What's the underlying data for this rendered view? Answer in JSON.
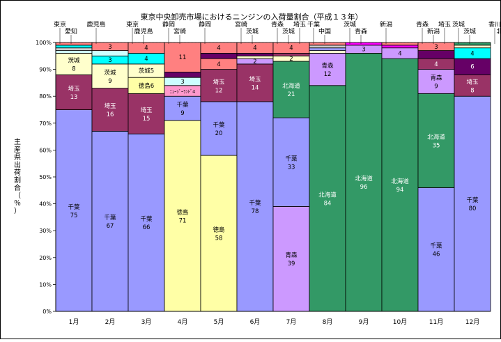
{
  "chart_data": {
    "type": "bar",
    "stacked": true,
    "title": "東京中央卸売市場におけるニンジンの入荷量割合（平成１３年）",
    "ylabel": "主産県出荷割合（％）",
    "xlabel": "",
    "ylim": [
      0,
      100
    ],
    "yticks": [
      "0%",
      "10%",
      "20%",
      "30%",
      "40%",
      "50%",
      "60%",
      "70%",
      "80%",
      "90%",
      "100%"
    ],
    "grid": true,
    "categories": [
      "1月",
      "2月",
      "3月",
      "4月",
      "5月",
      "6月",
      "7月",
      "8月",
      "9月",
      "10月",
      "11月",
      "12月"
    ],
    "colors": {
      "千葉": "#9999ff",
      "徳島": "#ffffa6",
      "青森": "#cc99ff",
      "北海道": "#339966",
      "埼玉": "#993366",
      "茨城": "#ffffcc",
      "ニュージーランド": "#ff99cc",
      "鹿児島": "#ccffff",
      "宮崎": "#660066",
      "静岡": "#ff8080",
      "東京": "#00ffff",
      "新潟": "#ff00ff",
      "香川": "#00ffff",
      "その他": "#ff8080"
    },
    "months": [
      {
        "segments": [
          {
            "name": "千葉",
            "value": 75,
            "label": "千葉\n75"
          },
          {
            "name": "埼玉",
            "value": 13,
            "label": "埼玉\n13"
          },
          {
            "name": "茨城",
            "value": 8,
            "label": "茨城\n8"
          },
          {
            "name": "鹿児島",
            "value": 1,
            "label": ""
          },
          {
            "name": "愛知",
            "value": 1,
            "label": ""
          },
          {
            "name": "東京",
            "value": 1,
            "label": ""
          },
          {
            "name": "その他",
            "value": 1,
            "label": ""
          }
        ]
      },
      {
        "segments": [
          {
            "name": "千葉",
            "value": 67,
            "label": "千葉\n67"
          },
          {
            "name": "埼玉",
            "value": 16,
            "label": "埼玉\n16"
          },
          {
            "name": "茨城",
            "value": 9,
            "label": "茨城\n9"
          },
          {
            "name": "東京",
            "value": 3,
            "label": "3"
          },
          {
            "name": "鹿児島",
            "value": 2,
            "label": ""
          },
          {
            "name": "その他",
            "value": 3,
            "label": "3"
          }
        ]
      },
      {
        "segments": [
          {
            "name": "千葉",
            "value": 66,
            "label": "千葉\n66"
          },
          {
            "name": "埼玉",
            "value": 15,
            "label": "埼玉\n15"
          },
          {
            "name": "徳島",
            "value": 6,
            "label": "徳島6"
          },
          {
            "name": "茨城",
            "value": 5,
            "label": "茨城5"
          },
          {
            "name": "東京",
            "value": 4,
            "label": "4"
          },
          {
            "name": "その他",
            "value": 4,
            "label": "4"
          }
        ]
      },
      {
        "segments": [
          {
            "name": "徳島",
            "value": 71,
            "label": "徳島\n71"
          },
          {
            "name": "千葉",
            "value": 9,
            "label": "千葉\n9"
          },
          {
            "name": "ニュージーランド",
            "value": 4,
            "label": "ﾆｭｰｼﾞｰﾗﾝﾄﾞ4"
          },
          {
            "name": "鹿児島",
            "value": 3,
            "label": "3"
          },
          {
            "name": "宮崎",
            "value": 2,
            "label": ""
          },
          {
            "name": "その他",
            "value": 11,
            "label": "11"
          }
        ]
      },
      {
        "segments": [
          {
            "name": "徳島",
            "value": 58,
            "label": "徳島\n58"
          },
          {
            "name": "千葉",
            "value": 20,
            "label": "千葉\n20"
          },
          {
            "name": "埼玉",
            "value": 12,
            "label": "埼玉\n12"
          },
          {
            "name": "静岡",
            "value": 4,
            "label": "4"
          },
          {
            "name": "宮崎",
            "value": 2,
            "label": ""
          },
          {
            "name": "その他",
            "value": 4,
            "label": "4"
          }
        ]
      },
      {
        "segments": [
          {
            "name": "千葉",
            "value": 78,
            "label": "千葉\n78"
          },
          {
            "name": "埼玉",
            "value": 14,
            "label": "埼玉\n14"
          },
          {
            "name": "青森",
            "value": 2,
            "label": "2"
          },
          {
            "name": "茨城",
            "value": 1,
            "label": ""
          },
          {
            "name": "宮崎",
            "value": 1,
            "label": ""
          },
          {
            "name": "その他",
            "value": 4,
            "label": "4"
          }
        ]
      },
      {
        "segments": [
          {
            "name": "青森",
            "value": 39,
            "label": "青森\n39"
          },
          {
            "name": "千葉",
            "value": 33,
            "label": "千葉\n33"
          },
          {
            "name": "北海道",
            "value": 21,
            "label": "北海道\n21"
          },
          {
            "name": "茨城",
            "value": 2,
            "label": "2"
          },
          {
            "name": "埼玉",
            "value": 1,
            "label": ""
          },
          {
            "name": "その他",
            "value": 4,
            "label": "4"
          }
        ]
      },
      {
        "segments": [
          {
            "name": "北海道",
            "value": 84,
            "label": "北海道\n84"
          },
          {
            "name": "青森",
            "value": 12,
            "label": "青森\n12"
          },
          {
            "name": "茨城",
            "value": 1,
            "label": ""
          },
          {
            "name": "千葉",
            "value": 1,
            "label": ""
          },
          {
            "name": "中国",
            "value": 1,
            "label": ""
          },
          {
            "name": "その他",
            "value": 1,
            "label": ""
          }
        ]
      },
      {
        "segments": [
          {
            "name": "北海道",
            "value": 96,
            "label": "北海道\n96"
          },
          {
            "name": "青森",
            "value": 3,
            "label": "3"
          },
          {
            "name": "新潟",
            "value": 1,
            "label": ""
          }
        ]
      },
      {
        "segments": [
          {
            "name": "北海道",
            "value": 94,
            "label": "北海道\n94"
          },
          {
            "name": "青森",
            "value": 4,
            "label": "4"
          },
          {
            "name": "新潟",
            "value": 1,
            "label": ""
          },
          {
            "name": "その他",
            "value": 1,
            "label": ""
          }
        ]
      },
      {
        "segments": [
          {
            "name": "千葉",
            "value": 46,
            "label": "千葉\n46"
          },
          {
            "name": "北海道",
            "value": 35,
            "label": "北海道\n35"
          },
          {
            "name": "青森",
            "value": 9,
            "label": "青森\n9"
          },
          {
            "name": "埼玉",
            "value": 4,
            "label": "4"
          },
          {
            "name": "宮崎",
            "value": 3,
            "label": ""
          },
          {
            "name": "その他",
            "value": 3,
            "label": "3"
          }
        ]
      },
      {
        "segments": [
          {
            "name": "千葉",
            "value": 80,
            "label": "千葉\n80"
          },
          {
            "name": "埼玉",
            "value": 8,
            "label": "埼玉\n8"
          },
          {
            "name": "宮崎",
            "value": 6,
            "label": "6"
          },
          {
            "name": "香川",
            "value": 4,
            "label": "4"
          },
          {
            "name": "茨城",
            "value": 1,
            "label": ""
          },
          {
            "name": "北海道",
            "value": 1,
            "label": ""
          }
        ]
      }
    ],
    "callouts": [
      {
        "text": "東京",
        "month": 0
      },
      {
        "text": "愛知",
        "month": 0
      },
      {
        "text": "鹿児島",
        "month": 1
      },
      {
        "text": "東京",
        "month": 2
      },
      {
        "text": "鹿児島",
        "month": 2
      },
      {
        "text": "静岡",
        "month": 3
      },
      {
        "text": "宮崎",
        "month": 3
      },
      {
        "text": "静岡",
        "month": 4
      },
      {
        "text": "宮崎",
        "month": 5
      },
      {
        "text": "茨城",
        "month": 5
      },
      {
        "text": "青森",
        "month": 6
      },
      {
        "text": "茨城",
        "month": 6
      },
      {
        "text": "埼玉",
        "month": 6
      },
      {
        "text": "千葉",
        "month": 7
      },
      {
        "text": "中国",
        "month": 7
      },
      {
        "text": "茨城",
        "month": 8
      },
      {
        "text": "青森",
        "month": 8
      },
      {
        "text": "新潟",
        "month": 9
      },
      {
        "text": "青森",
        "month": 10
      },
      {
        "text": "新潟",
        "month": 10
      },
      {
        "text": "埼玉",
        "month": 10
      },
      {
        "text": "茨城",
        "month": 11
      },
      {
        "text": "茨城",
        "month": 11
      },
      {
        "text": "香川",
        "month": 12
      },
      {
        "text": "北海道",
        "month": 12
      }
    ]
  }
}
